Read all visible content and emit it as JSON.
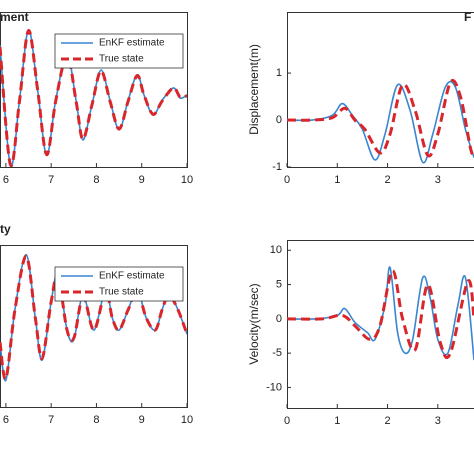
{
  "chart_data": [
    {
      "type": "line",
      "title": "ment",
      "xlim": [
        5.87,
        10
      ],
      "ylim": [
        -1,
        1
      ],
      "xticks": [
        6,
        7,
        8,
        9,
        10
      ],
      "legend": "upper right",
      "series": [
        {
          "name": "EnKF estimate",
          "color": "#3a86d0",
          "dash": false,
          "x": [
            5.87,
            6.1,
            6.3,
            6.5,
            6.7,
            6.9,
            7.1,
            7.35,
            7.55,
            7.7,
            7.9,
            8.1,
            8.3,
            8.5,
            8.7,
            8.9,
            9.05,
            9.25,
            9.45,
            9.7,
            9.85,
            10
          ],
          "values": [
            0.57,
            -0.98,
            -0.14,
            0.77,
            0.0,
            -0.85,
            -0.14,
            0.45,
            -0.14,
            -0.65,
            -0.2,
            0.25,
            -0.14,
            -0.52,
            -0.14,
            0.19,
            -0.07,
            -0.33,
            -0.14,
            0.02,
            -0.11,
            -0.07
          ]
        },
        {
          "name": "True state",
          "color": "#d9262b",
          "dash": true,
          "x": [
            5.87,
            6.1,
            6.3,
            6.5,
            6.7,
            6.9,
            7.1,
            7.35,
            7.55,
            7.7,
            7.9,
            8.1,
            8.3,
            8.5,
            8.7,
            8.9,
            9.05,
            9.25,
            9.45,
            9.7,
            9.85,
            10
          ],
          "values": [
            0.55,
            -0.97,
            -0.15,
            0.76,
            0.0,
            -0.84,
            -0.15,
            0.44,
            -0.15,
            -0.64,
            -0.2,
            0.24,
            -0.15,
            -0.51,
            -0.15,
            0.18,
            -0.07,
            -0.32,
            -0.15,
            0.02,
            -0.1,
            -0.08
          ]
        }
      ]
    },
    {
      "type": "line",
      "title": "F",
      "y_label": "Displacement(m)",
      "xlim": [
        0,
        3.72
      ],
      "ylim": [
        -1,
        2.3
      ],
      "xticks": [
        0,
        1,
        2,
        3
      ],
      "yticks": [
        -1,
        0,
        1
      ],
      "series": [
        {
          "name": "EnKF estimate",
          "color": "#3a86d0",
          "dash": false,
          "x": [
            0,
            0.5,
            0.9,
            1.1,
            1.3,
            1.5,
            1.75,
            1.95,
            2.2,
            2.45,
            2.7,
            2.9,
            3.15,
            3.35,
            3.55,
            3.72
          ],
          "values": [
            0,
            0,
            0.1,
            0.35,
            0.1,
            -0.2,
            -0.85,
            -0.3,
            0.75,
            0.2,
            -0.9,
            -0.3,
            0.7,
            0.7,
            -0.2,
            -0.8
          ]
        },
        {
          "name": "True state",
          "color": "#d9262b",
          "dash": true,
          "x": [
            0,
            0.5,
            0.9,
            1.15,
            1.35,
            1.55,
            1.85,
            2.05,
            2.3,
            2.55,
            2.8,
            3.0,
            3.25,
            3.45,
            3.65,
            3.72
          ],
          "values": [
            0,
            0,
            0.05,
            0.25,
            0.0,
            -0.2,
            -0.7,
            -0.3,
            0.75,
            0.2,
            -0.75,
            -0.3,
            0.8,
            0.5,
            -0.6,
            -0.75
          ]
        }
      ]
    },
    {
      "type": "line",
      "title": "ty",
      "xlim": [
        5.87,
        10
      ],
      "ylim": [
        -1,
        1
      ],
      "xticks": [
        6,
        7,
        8,
        9,
        10
      ],
      "legend": "upper right",
      "series": [
        {
          "name": "EnKF estimate",
          "color": "#3a86d0",
          "dash": false,
          "x": [
            5.87,
            6.0,
            6.2,
            6.45,
            6.65,
            6.8,
            7.0,
            7.15,
            7.35,
            7.5,
            7.65,
            7.75,
            7.95,
            8.2,
            8.35,
            8.5,
            8.7,
            8.9,
            9.1,
            9.3,
            9.45,
            9.6,
            9.8,
            10
          ],
          "values": [
            -0.2,
            -0.67,
            0.2,
            0.88,
            0.1,
            -0.42,
            0.3,
            0.64,
            -0.05,
            -0.17,
            0.3,
            0.33,
            -0.05,
            0.45,
            0.1,
            -0.05,
            0.2,
            0.45,
            0.1,
            -0.05,
            0.2,
            0.4,
            0.2,
            -0.1
          ]
        },
        {
          "name": "True state",
          "color": "#d9262b",
          "dash": true,
          "x": [
            5.87,
            6.0,
            6.2,
            6.45,
            6.65,
            6.8,
            7.0,
            7.15,
            7.35,
            7.5,
            7.65,
            7.75,
            7.95,
            8.2,
            8.35,
            8.5,
            8.7,
            8.9,
            9.1,
            9.3,
            9.45,
            9.6,
            9.8,
            10
          ],
          "values": [
            -0.2,
            -0.65,
            0.2,
            0.86,
            0.1,
            -0.4,
            0.3,
            0.62,
            -0.05,
            -0.15,
            0.28,
            0.32,
            -0.05,
            0.43,
            0.1,
            -0.05,
            0.2,
            0.43,
            0.1,
            -0.05,
            0.2,
            0.38,
            0.2,
            -0.1
          ]
        }
      ]
    },
    {
      "type": "line",
      "y_label": "Velocity(m/sec)",
      "xlim": [
        0,
        3.72
      ],
      "ylim": [
        -13,
        11.5
      ],
      "xticks": [
        0,
        1,
        2,
        3
      ],
      "yticks": [
        -10,
        -5,
        0,
        5,
        10
      ],
      "series": [
        {
          "name": "EnKF estimate",
          "color": "#3a86d0",
          "dash": false,
          "x": [
            0,
            0.6,
            1.0,
            1.15,
            1.35,
            1.6,
            1.75,
            1.95,
            2.05,
            2.2,
            2.35,
            2.5,
            2.7,
            2.85,
            3.0,
            3.2,
            3.4,
            3.55,
            3.72
          ],
          "values": [
            0,
            0,
            0.5,
            1.5,
            -0.5,
            -2,
            -3,
            2,
            7.5,
            -2,
            -5,
            -3,
            6,
            3,
            -3,
            -5,
            2,
            6,
            -6
          ]
        },
        {
          "name": "True state",
          "color": "#d9262b",
          "dash": true,
          "x": [
            0,
            0.7,
            1.1,
            1.35,
            1.65,
            1.85,
            2.1,
            2.3,
            2.55,
            2.8,
            3.05,
            3.25,
            3.6,
            3.72
          ],
          "values": [
            0,
            0,
            0.5,
            -1,
            -3,
            -1,
            7,
            0,
            -4.5,
            5,
            -3.5,
            -5,
            5.5,
            0
          ]
        }
      ]
    }
  ]
}
